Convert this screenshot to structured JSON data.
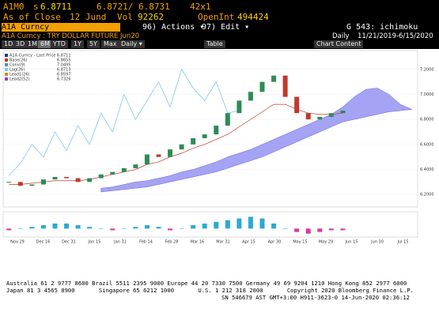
{
  "header": {
    "ticker": "A1M0",
    "price_prefix": "s",
    "price": "6.8711",
    "bid_ask": "6.8721/ 6.8731",
    "size": "42x1",
    "as_of": "As of Close",
    "date": "12 Jund",
    "vol_label": "Vol",
    "vol": "92262",
    "oi_label": "OpenInt",
    "oi": "494424"
  },
  "toolbar": {
    "security": "A1A Curncy",
    "actions": "96) Actions ▾",
    "edit": "97) Edit ▾",
    "function": "G 543: ichimoku"
  },
  "subheader": {
    "name": "A1A Curncy : TRY DOLLAR FUTURE Jun20",
    "freq": "Daily",
    "range": "11/21/2019-6/15/2020"
  },
  "buttons": [
    "1D",
    "3D",
    "1M",
    "6M",
    "YTD",
    "1Y",
    "5Y",
    "Max",
    "Daily ▾",
    "Table",
    "Chart Content"
  ],
  "chart": {
    "legend": [
      {
        "name": "A1A Curncy - Last Price",
        "value": "6.8711",
        "color": "#1a3d8f"
      },
      {
        "name": "Base(26)",
        "value": "6.8655",
        "color": "#c0392b"
      },
      {
        "name": "Conv(9)",
        "value": "7.0495",
        "color": "#4a90c8"
      },
      {
        "name": "Lag(26)",
        "value": "6.8713",
        "color": "#7ec8f0"
      },
      {
        "name": "Lead1(26)",
        "value": "6.8597",
        "color": "#e67e22"
      },
      {
        "name": "Lead2(52)",
        "value": "6.7326",
        "color": "#8e44ad"
      }
    ],
    "ylim": [
      6.1,
      7.35
    ],
    "yticks": [
      {
        "value": 6.2,
        "label": "6.2000"
      },
      {
        "value": 6.4,
        "label": "6.4000"
      },
      {
        "value": 6.6,
        "label": "6.6000"
      },
      {
        "value": 6.8,
        "label": "6.8000"
      },
      {
        "value": 7.0,
        "label": "7.0000"
      },
      {
        "value": 7.2,
        "label": "7.2000"
      }
    ],
    "closes": [
      6.3,
      6.27,
      6.28,
      6.32,
      6.34,
      6.33,
      6.3,
      6.33,
      6.36,
      6.38,
      6.41,
      6.44,
      6.52,
      6.5,
      6.56,
      6.6,
      6.65,
      6.68,
      6.75,
      6.85,
      6.95,
      7.02,
      7.1,
      7.15,
      6.98,
      6.85,
      6.8,
      6.82,
      6.85,
      6.87
    ],
    "base": [
      6.28,
      6.28,
      6.29,
      6.3,
      6.31,
      6.31,
      6.31,
      6.32,
      6.34,
      6.36,
      6.38,
      6.4,
      6.44,
      6.46,
      6.5,
      6.53,
      6.57,
      6.6,
      6.64,
      6.68,
      6.74,
      6.8,
      6.86,
      6.92,
      6.92,
      6.88,
      6.85,
      6.84,
      6.84,
      6.85
    ],
    "lag": [
      6.35,
      6.45,
      6.6,
      6.5,
      6.7,
      6.55,
      6.75,
      6.6,
      6.85,
      6.7,
      7.0,
      6.8,
      6.95,
      7.1,
      6.9,
      7.2,
      7.05,
      6.95,
      7.1,
      6.85,
      6.87
    ],
    "cloud_top": [
      6.25,
      6.26,
      6.28,
      6.3,
      6.31,
      6.33,
      6.35,
      6.38,
      6.4,
      6.43,
      6.46,
      6.5,
      6.53,
      6.56,
      6.6,
      6.64,
      6.68,
      6.72,
      6.76,
      6.8,
      6.84,
      6.9,
      6.98,
      7.04,
      7.05,
      7.0,
      6.92,
      6.88
    ],
    "cloud_bottom": [
      6.22,
      6.23,
      6.24,
      6.25,
      6.26,
      6.28,
      6.3,
      6.32,
      6.34,
      6.36,
      6.38,
      6.41,
      6.44,
      6.47,
      6.5,
      6.54,
      6.58,
      6.62,
      6.66,
      6.7,
      6.74,
      6.78,
      6.8,
      6.82,
      6.84,
      6.86,
      6.87,
      6.88
    ],
    "macd_ylim": [
      -0.05,
      0.1
    ],
    "macd": [
      -0.01,
      0,
      0.01,
      0.02,
      0.03,
      0.03,
      0.02,
      0.01,
      0,
      -0.01,
      0,
      0.01,
      0.02,
      0.01,
      -0.01,
      0,
      0.02,
      0.03,
      0.04,
      0.05,
      0.06,
      0.07,
      0.06,
      0.03,
      0,
      -0.02,
      -0.03,
      -0.02,
      -0.01,
      -0.01
    ],
    "xtick_labels": [
      "Nov 29",
      "Dec 16",
      "Dec 31",
      "Jan 15",
      "Jan 31",
      "Feb 14",
      "Feb 28",
      "Mar 16",
      "Mar 31",
      "Apr 15",
      "Apr 30",
      "May 15",
      "May 29",
      "Jun 15",
      "Jun 30",
      "Jul 15"
    ]
  },
  "footer": [
    "Australia 61 2 9777 8600 Brazil 5511 2395 9000 Europe 44 20 7330 7500 Germany 49 69 9204 1210 Hong Kong 852 2977 6000",
    "Japan 81 3 4565 8900       Singapore 65 6212 1000       U.S. 1 212 318 2000       Copyright 2020 Bloomberg Finance L.P.",
    "SN 546679 AST GMT+3:00 H911-3623-0 14-Jun-2020 02:36:12"
  ]
}
